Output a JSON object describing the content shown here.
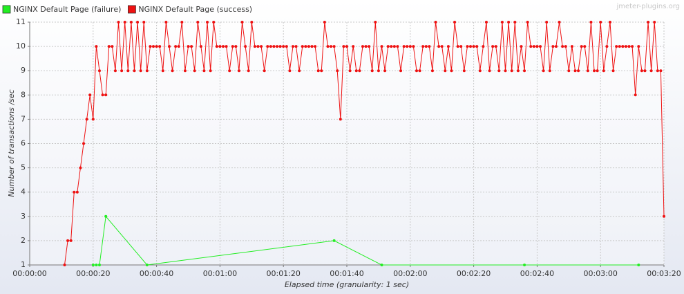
{
  "chart_data": {
    "type": "line",
    "watermark": "jmeter-plugins.org",
    "x_label": "Elapsed time (granularity: 1 sec)",
    "y_label": "Number of transactions /sec",
    "grid": true,
    "legend": "top-left",
    "xlim": [
      0,
      200
    ],
    "ylim": [
      1,
      11
    ],
    "xticks": [
      {
        "value": 0,
        "label": "00:00:00"
      },
      {
        "value": 20,
        "label": "00:00:20"
      },
      {
        "value": 40,
        "label": "00:00:40"
      },
      {
        "value": 60,
        "label": "00:01:00"
      },
      {
        "value": 80,
        "label": "00:01:20"
      },
      {
        "value": 100,
        "label": "00:01:40"
      },
      {
        "value": 120,
        "label": "00:02:00"
      },
      {
        "value": 140,
        "label": "00:02:20"
      },
      {
        "value": 160,
        "label": "00:02:40"
      },
      {
        "value": 180,
        "label": "00:03:00"
      },
      {
        "value": 200,
        "label": "00:03:20"
      }
    ],
    "yticks": [
      1,
      2,
      3,
      4,
      5,
      6,
      7,
      8,
      9,
      10,
      11
    ],
    "series": [
      {
        "name": "NGINX Default Page (failure)",
        "color": "#22ee22",
        "x": [
          20,
          21,
          22,
          24,
          37,
          96,
          111,
          156,
          192
        ],
        "values": [
          1,
          1,
          1,
          3,
          1,
          2,
          1,
          1,
          1
        ]
      },
      {
        "name": "NGINX Default Page (success)",
        "color": "#ee1111",
        "x": [
          11,
          12,
          13,
          14,
          15,
          16,
          17,
          18,
          19,
          20,
          21,
          22,
          23,
          24,
          25,
          26,
          27,
          28,
          29,
          30,
          31,
          32,
          33,
          34,
          35,
          36,
          37,
          38,
          39,
          40,
          41,
          42,
          43,
          44,
          45,
          46,
          47,
          48,
          49,
          50,
          51,
          52,
          53,
          54,
          55,
          56,
          57,
          58,
          59,
          60,
          61,
          62,
          63,
          64,
          65,
          66,
          67,
          68,
          69,
          70,
          71,
          72,
          73,
          74,
          75,
          76,
          77,
          78,
          79,
          80,
          81,
          82,
          83,
          84,
          85,
          86,
          87,
          88,
          89,
          90,
          91,
          92,
          93,
          94,
          95,
          96,
          97,
          98,
          99,
          100,
          101,
          102,
          103,
          104,
          105,
          106,
          107,
          108,
          109,
          110,
          111,
          112,
          113,
          114,
          115,
          116,
          117,
          118,
          119,
          120,
          121,
          122,
          123,
          124,
          125,
          126,
          127,
          128,
          129,
          130,
          131,
          132,
          133,
          134,
          135,
          136,
          137,
          138,
          139,
          140,
          141,
          142,
          143,
          144,
          145,
          146,
          147,
          148,
          149,
          150,
          151,
          152,
          153,
          154,
          155,
          156,
          157,
          158,
          159,
          160,
          161,
          162,
          163,
          164,
          165,
          166,
          167,
          168,
          169,
          170,
          171,
          172,
          173,
          174,
          175,
          176,
          177,
          178,
          179,
          180,
          181,
          182,
          183,
          184,
          185,
          186,
          187,
          188,
          189,
          190,
          191,
          192,
          193,
          194,
          195,
          196,
          197,
          198,
          199,
          200
        ],
        "values": [
          1,
          2,
          2,
          4,
          4,
          5,
          6,
          7,
          8,
          7,
          10,
          9,
          8,
          8,
          10,
          10,
          9,
          11,
          9,
          11,
          9,
          11,
          9,
          11,
          9,
          11,
          9,
          10,
          10,
          10,
          10,
          9,
          11,
          10,
          9,
          10,
          10,
          11,
          9,
          10,
          10,
          9,
          11,
          10,
          9,
          11,
          9,
          11,
          10,
          10,
          10,
          10,
          9,
          10,
          10,
          9,
          11,
          10,
          9,
          11,
          10,
          10,
          10,
          9,
          10,
          10,
          10,
          10,
          10,
          10,
          10,
          9,
          10,
          10,
          9,
          10,
          10,
          10,
          10,
          10,
          9,
          9,
          11,
          10,
          10,
          10,
          9,
          7,
          10,
          10,
          9,
          10,
          9,
          9,
          10,
          10,
          10,
          9,
          11,
          9,
          10,
          9,
          10,
          10,
          10,
          10,
          9,
          10,
          10,
          10,
          10,
          9,
          9,
          10,
          10,
          10,
          9,
          11,
          10,
          10,
          9,
          10,
          9,
          11,
          10,
          10,
          9,
          10,
          10,
          10,
          10,
          9,
          10,
          11,
          9,
          10,
          10,
          9,
          11,
          9,
          11,
          9,
          11,
          9,
          10,
          9,
          11,
          10,
          10,
          10,
          10,
          9,
          11,
          9,
          10,
          10,
          11,
          10,
          10,
          9,
          10,
          9,
          9,
          10,
          10,
          9,
          11,
          9,
          9,
          11,
          9,
          10,
          11,
          9,
          10,
          10,
          10,
          10,
          10,
          10,
          8,
          10,
          9,
          9,
          11,
          9,
          11,
          9,
          9,
          3
        ]
      }
    ]
  }
}
